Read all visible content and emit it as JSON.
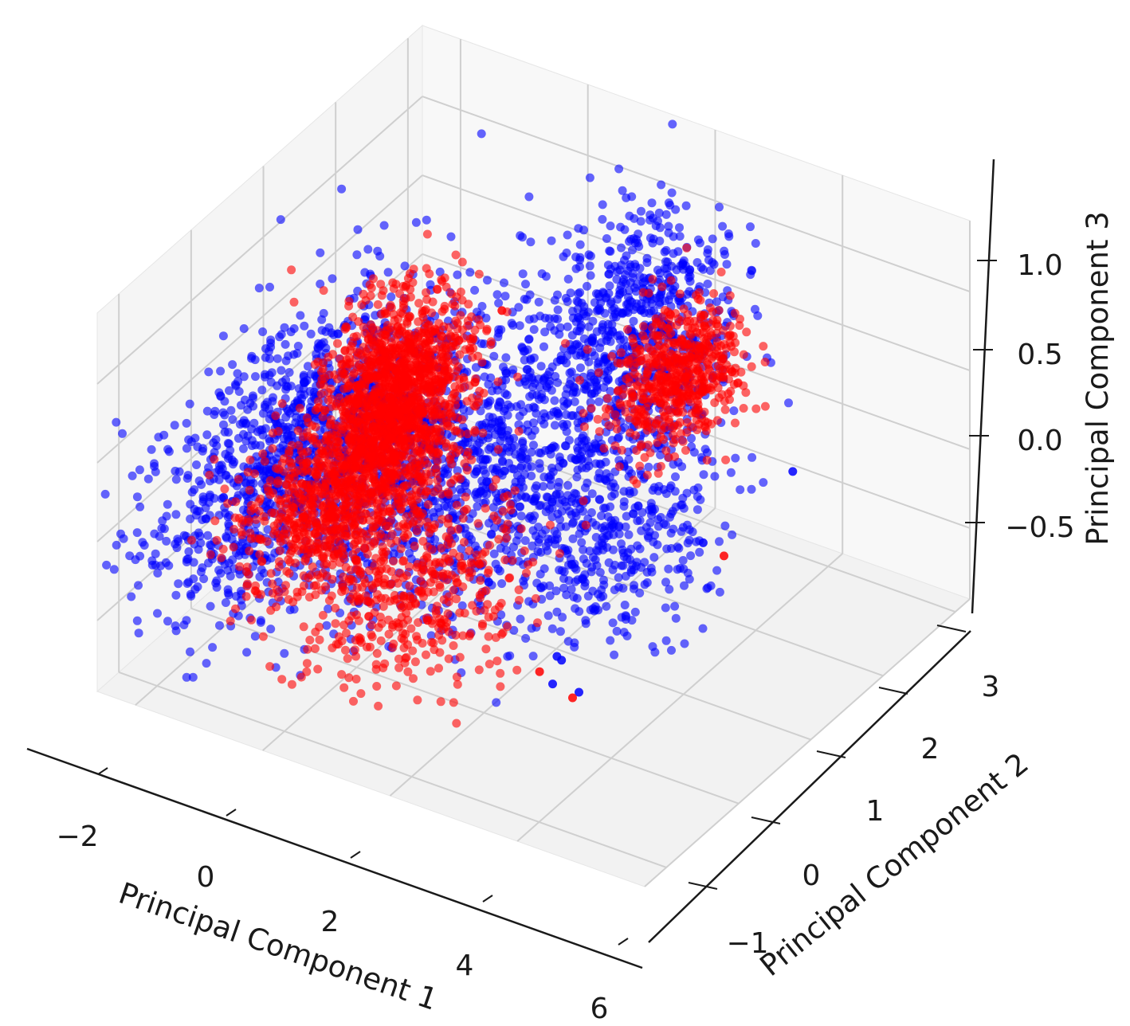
{
  "chart_data": {
    "type": "scatter",
    "projection": "3d",
    "title": "",
    "grid": true,
    "xlabel": "Principal Component 1",
    "ylabel": "Principal Component 2",
    "zlabel": "Principal Component 3",
    "xlim": [
      -2.6,
      6.0
    ],
    "ylim": [
      -1.3,
      3.2
    ],
    "zlim": [
      -0.95,
      1.45
    ],
    "x_ticks": [
      -2,
      0,
      2,
      4,
      6
    ],
    "y_ticks": [
      -1,
      0,
      1,
      2,
      3
    ],
    "z_ticks": [
      -0.5,
      0.0,
      0.5,
      1.0
    ],
    "x_tick_labels": [
      "−2",
      "0",
      "2",
      "4",
      "6"
    ],
    "y_tick_labels": [
      "−1",
      "0",
      "1",
      "2",
      "3"
    ],
    "z_tick_labels": [
      "−0.5",
      "0.0",
      "0.5",
      "1.0"
    ],
    "colors": {
      "class_a": "#0000ff",
      "class_b": "#ff0000",
      "pane": "#f2f2f2",
      "grid": "#cfcfcf",
      "axis": "#1a1a1a"
    },
    "series": [
      {
        "color": "#0000ff",
        "clusters": [
          {
            "center": [
              -1.4,
              0.4,
              0.05
            ],
            "spread": [
              0.55,
              0.9,
              0.35
            ],
            "count": 1100
          },
          {
            "center": [
              0.6,
              0.9,
              0.05
            ],
            "spread": [
              0.8,
              0.8,
              0.3
            ],
            "count": 900
          },
          {
            "center": [
              1.7,
              2.3,
              0.5
            ],
            "spread": [
              0.6,
              0.5,
              0.35
            ],
            "count": 700
          },
          {
            "center": [
              2.3,
              1.4,
              -0.35
            ],
            "spread": [
              0.7,
              0.6,
              0.25
            ],
            "count": 450
          }
        ],
        "points": [
          [
            1.2,
            -0.7,
            0.6
          ],
          [
            1.5,
            -0.5,
            1.1
          ],
          [
            3.6,
            -0.4,
            -0.2
          ],
          [
            3.9,
            -0.6,
            -0.1
          ],
          [
            4.1,
            -0.9,
            -0.1
          ],
          [
            4.4,
            -0.8,
            -0.15
          ],
          [
            3.4,
            1.8,
            -0.4
          ],
          [
            3.9,
            2.6,
            -0.2
          ]
        ]
      },
      {
        "color": "#ff0000",
        "clusters": [
          {
            "center": [
              -0.3,
              0.8,
              0.35
            ],
            "spread": [
              0.35,
              0.4,
              0.3
            ],
            "count": 1400
          },
          {
            "center": [
              -0.5,
              0.0,
              0.0
            ],
            "spread": [
              0.45,
              0.45,
              0.2
            ],
            "count": 600
          },
          {
            "center": [
              0.9,
              0.0,
              -0.3
            ],
            "spread": [
              0.7,
              0.5,
              0.25
            ],
            "count": 450
          },
          {
            "center": [
              2.2,
              2.5,
              0.2
            ],
            "spread": [
              0.35,
              0.35,
              0.18
            ],
            "count": 550
          }
        ],
        "points": [
          [
            1.6,
            0.6,
            1.3
          ],
          [
            3.1,
            -0.2,
            -0.45
          ],
          [
            4.3,
            -0.8,
            -0.2
          ],
          [
            3.5,
            2.0,
            -0.55
          ]
        ]
      }
    ]
  }
}
